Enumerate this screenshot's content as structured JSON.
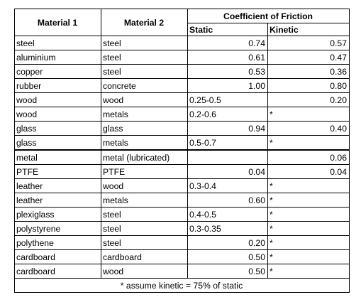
{
  "headers": {
    "material1": "Material 1",
    "material2": "Material 2",
    "coefficient": "Coefficient of Friction",
    "static": "Static",
    "kinetic": "Kinetic"
  },
  "rows": [
    {
      "m1": "steel",
      "m2": "steel",
      "static": "0.74",
      "kinetic": "0.57"
    },
    {
      "m1": "aluminium",
      "m2": "steel",
      "static": "0.61",
      "kinetic": "0.47"
    },
    {
      "m1": "copper",
      "m2": "steel",
      "static": "0.53",
      "kinetic": "0.36"
    },
    {
      "m1": "rubber",
      "m2": "concrete",
      "static": "1.00",
      "kinetic": "0.80"
    },
    {
      "m1": "wood",
      "m2": "wood",
      "static": "0.25-0.5",
      "kinetic": "0.20"
    },
    {
      "m1": "wood",
      "m2": "metals",
      "static": "0.2-0.6",
      "kinetic": "*"
    },
    {
      "m1": "glass",
      "m2": "glass",
      "static": "0.94",
      "kinetic": "0.40"
    },
    {
      "m1": "glass",
      "m2": "metals",
      "static": "0.5-0.7",
      "kinetic": "*"
    },
    {
      "m1": "metal",
      "m2": "metal (lubricated)",
      "static": "",
      "kinetic": "0.06"
    },
    {
      "m1": "PTFE",
      "m2": "PTFE",
      "static": "0.04",
      "kinetic": "0.04"
    },
    {
      "m1": "leather",
      "m2": "wood",
      "static": "0.3-0.4",
      "kinetic": "*"
    },
    {
      "m1": "leather",
      "m2": "metals",
      "static": "0.60",
      "kinetic": "*"
    },
    {
      "m1": "plexiglass",
      "m2": "steel",
      "static": "0.4-0.5",
      "kinetic": "*"
    },
    {
      "m1": "polystyrene",
      "m2": "steel",
      "static": "0.3-0.35",
      "kinetic": "*"
    },
    {
      "m1": "polythene",
      "m2": "steel",
      "static": "0.20",
      "kinetic": "*"
    },
    {
      "m1": "cardboard",
      "m2": "cardboard",
      "static": "0.50",
      "kinetic": "*"
    },
    {
      "m1": "cardboard",
      "m2": "wood",
      "static": "0.50",
      "kinetic": "*"
    }
  ],
  "footer": "* assume kinetic = 75% of static"
}
